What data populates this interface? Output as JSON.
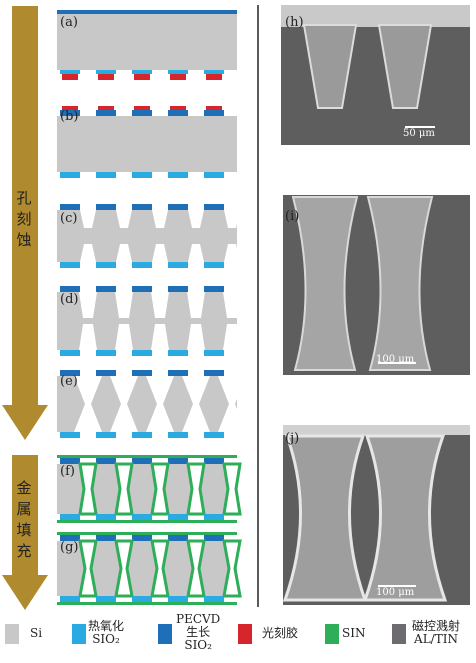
{
  "panel_labels": [
    "(a)",
    "(b)",
    "(c)",
    "(d)",
    "(e)",
    "(f)",
    "(g)",
    "(h)",
    "(i)",
    "(j)"
  ],
  "stages": [
    "孔刻蚀",
    "金属填充"
  ],
  "scale_bars": [
    "50 μm",
    "100 μm",
    "100 μm"
  ],
  "legend": [
    {
      "label": [
        "Si"
      ]
    },
    {
      "label": [
        "热氧化",
        "SIO₂"
      ]
    },
    {
      "label": [
        "PECVD",
        "生长",
        "SIO₂"
      ]
    },
    {
      "label": [
        "光刻胶"
      ]
    },
    {
      "label": [
        "SIN"
      ]
    },
    {
      "label": [
        "磁控溅射",
        "AL/TIN"
      ]
    }
  ]
}
